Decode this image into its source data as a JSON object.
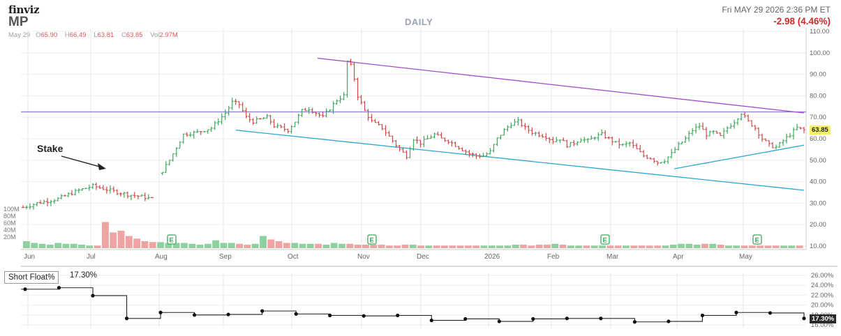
{
  "header": {
    "logo": "finviz",
    "ticker": "MP",
    "ohlc": {
      "date": "May 29",
      "open_label": "O",
      "open": "65.90",
      "high_label": "H",
      "high": "66.49",
      "low_label": "L",
      "low": "63.81",
      "close_label": "C",
      "close": "63.85",
      "vol_label": "Vol",
      "vol": "2.97M"
    },
    "timestamp": "Fri MAY 29 2026 2:36 PM ET",
    "change": "-2.98 (4.46%)",
    "period": "DAILY"
  },
  "annotations": {
    "stake": "Stake",
    "earnings_marker": "E"
  },
  "colors": {
    "up": "#41a85f",
    "down": "#d24b4b",
    "vol_up": "#8fd19e",
    "vol_down": "#f0a3a3",
    "resistance": "#a24bc8",
    "support": "#2aa8d4",
    "horizontal": "#8c78d8",
    "price_tag": "#f5f06a"
  },
  "chart_data": [
    {
      "type": "candlestick",
      "title": "DAILY",
      "x_labels": [
        "Jun",
        "Jul",
        "Aug",
        "Sep",
        "Oct",
        "Nov",
        "Dec",
        "2026",
        "Feb",
        "Mar",
        "Apr",
        "May"
      ],
      "y_ticks": [
        "110.00",
        "100.00",
        "90.00",
        "80.00",
        "70.00",
        "60.00",
        "50.00",
        "40.00",
        "30.00",
        "20.00",
        "10.00"
      ],
      "ylim": [
        10,
        110
      ],
      "last_price": "63.85",
      "price_path": [
        [
          0,
          28
        ],
        [
          4,
          30
        ],
        [
          10,
          32
        ],
        [
          16,
          36
        ],
        [
          20,
          38
        ],
        [
          26,
          35.5
        ],
        [
          30,
          34
        ],
        [
          34,
          33
        ],
        [
          37,
          32
        ],
        [
          40,
          45
        ],
        [
          42,
          50
        ],
        [
          44,
          56
        ],
        [
          46,
          62
        ],
        [
          50,
          63
        ],
        [
          54,
          65
        ],
        [
          58,
          72
        ],
        [
          60,
          77
        ],
        [
          62,
          76
        ],
        [
          64,
          70
        ],
        [
          66,
          68
        ],
        [
          70,
          70
        ],
        [
          72,
          66
        ],
        [
          74,
          65
        ],
        [
          76,
          64
        ],
        [
          78,
          68
        ],
        [
          80,
          73
        ],
        [
          82,
          74
        ],
        [
          84,
          72
        ],
        [
          86,
          70
        ],
        [
          88,
          74
        ],
        [
          90,
          78
        ],
        [
          92,
          80
        ],
        [
          93,
          96
        ],
        [
          94,
          94
        ],
        [
          95,
          88
        ],
        [
          96,
          80
        ],
        [
          98,
          73
        ],
        [
          100,
          68
        ],
        [
          103,
          65
        ],
        [
          106,
          59
        ],
        [
          108,
          55
        ],
        [
          110,
          52
        ],
        [
          112,
          60
        ],
        [
          114,
          58
        ],
        [
          116,
          60
        ],
        [
          118,
          62
        ],
        [
          120,
          60
        ],
        [
          122,
          59
        ],
        [
          124,
          57
        ],
        [
          126,
          55
        ],
        [
          128,
          53
        ],
        [
          130,
          52
        ],
        [
          132,
          52
        ],
        [
          134,
          54
        ],
        [
          136,
          60
        ],
        [
          138,
          64
        ],
        [
          140,
          67
        ],
        [
          142,
          68
        ],
        [
          144,
          65
        ],
        [
          146,
          63
        ],
        [
          148,
          62
        ],
        [
          150,
          61
        ],
        [
          152,
          59
        ],
        [
          154,
          60
        ],
        [
          156,
          57
        ],
        [
          158,
          58
        ],
        [
          160,
          60
        ],
        [
          162,
          59
        ],
        [
          164,
          61
        ],
        [
          166,
          62
        ],
        [
          168,
          60
        ],
        [
          170,
          58
        ],
        [
          172,
          57
        ],
        [
          174,
          58
        ],
        [
          176,
          55
        ],
        [
          178,
          52
        ],
        [
          180,
          51
        ],
        [
          182,
          49
        ],
        [
          184,
          50
        ],
        [
          186,
          53
        ],
        [
          188,
          57
        ],
        [
          190,
          60
        ],
        [
          192,
          64
        ],
        [
          194,
          66
        ],
        [
          196,
          62
        ],
        [
          198,
          63
        ],
        [
          200,
          61
        ],
        [
          202,
          65
        ],
        [
          204,
          68
        ],
        [
          206,
          72
        ],
        [
          208,
          68
        ],
        [
          210,
          65
        ],
        [
          212,
          60
        ],
        [
          214,
          57
        ],
        [
          216,
          56
        ],
        [
          218,
          59
        ],
        [
          220,
          62
        ],
        [
          222,
          65
        ],
        [
          224,
          64
        ]
      ],
      "volume_M": [
        8,
        6,
        5,
        4,
        6,
        5,
        5,
        4,
        3,
        3,
        30,
        18,
        20,
        14,
        11,
        8,
        7,
        7,
        6,
        6,
        6,
        5,
        4,
        5,
        9,
        6,
        6,
        5,
        4,
        5,
        14,
        10,
        8,
        6,
        6,
        5,
        5,
        5,
        4,
        6,
        5,
        5,
        4,
        4,
        4,
        4,
        3,
        3,
        4,
        4,
        3,
        3,
        3,
        3,
        3,
        3,
        3,
        3,
        3,
        3,
        3,
        3,
        4,
        4,
        3,
        4,
        4,
        5,
        4,
        3,
        3,
        3,
        3,
        3,
        3,
        3,
        3,
        3,
        3,
        3,
        3,
        3,
        4,
        5,
        5,
        4,
        5,
        5,
        4,
        3,
        3,
        3,
        3,
        3,
        3,
        3,
        3,
        3,
        3
      ],
      "earnings_x": [
        "Aug",
        "Nov",
        "Feb",
        "May"
      ],
      "trendlines": [
        {
          "name": "resistance",
          "from": [
            "Oct",
            97.5
          ],
          "to": [
            "May end",
            72
          ]
        },
        {
          "name": "support",
          "from": [
            "Sep",
            64
          ],
          "to": [
            "May end",
            36
          ]
        },
        {
          "name": "support-recent",
          "from": [
            "Apr",
            46
          ],
          "to": [
            "May end",
            57
          ]
        },
        {
          "name": "horizontal",
          "level": 72.5
        }
      ],
      "annotation": {
        "text": "Stake",
        "target": [
          "Jul",
          45
        ]
      }
    },
    {
      "type": "step",
      "title": "Short Float%",
      "current": "17.30%",
      "y_ticks": [
        "26.00%",
        "24.00%",
        "22.00%",
        "20.00%",
        "18.00%",
        "16.00%"
      ],
      "ylim": [
        16,
        26.5
      ],
      "values": [
        23.2,
        23.5,
        21.9,
        17.3,
        18.5,
        18.0,
        18.1,
        18.8,
        18.2,
        17.9,
        17.8,
        17.9,
        16.9,
        17.2,
        16.7,
        17.2,
        17.3,
        17.3,
        16.6,
        16.7,
        17.9,
        18.5,
        18.4,
        17.3
      ]
    }
  ]
}
